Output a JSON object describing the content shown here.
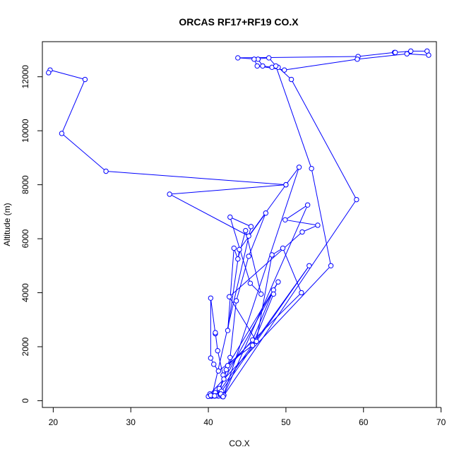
{
  "chart_data": {
    "type": "line",
    "title": "ORCAS RF17+RF19 CO.X",
    "xlabel": "CO.X",
    "ylabel": "Altitude (m)",
    "xlim": [
      18.6,
      69.4
    ],
    "ylim": [
      -250,
      13300
    ],
    "x_ticks": [
      20,
      30,
      40,
      50,
      60,
      70
    ],
    "x_tick_labels": [
      "20",
      "30",
      "40",
      "50",
      "60",
      "70"
    ],
    "y_ticks": [
      0,
      2000,
      4000,
      6000,
      8000,
      10000,
      12000
    ],
    "y_tick_labels": [
      "0",
      "2000",
      "4000",
      "6000",
      "8000",
      "10000",
      "12000"
    ],
    "grid": false,
    "line_color": "#0000ff",
    "marker": "open-circle",
    "series": [
      {
        "points": [
          [
            40.0,
            160
          ],
          [
            40.4,
            165
          ],
          [
            40.8,
            170
          ],
          [
            41.3,
            170
          ],
          [
            41.8,
            160
          ],
          [
            41.5,
            300
          ],
          [
            41.9,
            950
          ],
          [
            42.3,
            1150
          ],
          [
            45.7,
            2250
          ],
          [
            48.4,
            4100
          ],
          [
            48.4,
            3950
          ],
          [
            45.7,
            2050
          ],
          [
            41.3,
            1100
          ],
          [
            40.7,
            1350
          ],
          [
            40.3,
            1580
          ],
          [
            40.3,
            3800
          ],
          [
            40.9,
            2480
          ],
          [
            40.9,
            2520
          ],
          [
            41.2,
            1850
          ],
          [
            42.0,
            800
          ],
          [
            42.8,
            1600
          ],
          [
            43.6,
            3700
          ],
          [
            45.2,
            5350
          ],
          [
            47.4,
            6950
          ],
          [
            44.0,
            5600
          ],
          [
            42.5,
            2600
          ],
          [
            43.3,
            5650
          ],
          [
            43.8,
            5250
          ],
          [
            44.8,
            6300
          ],
          [
            46.8,
            3950
          ],
          [
            45.4,
            4350
          ],
          [
            42.8,
            6800
          ],
          [
            45.5,
            6450
          ],
          [
            40.5,
            200
          ],
          [
            41.0,
            200
          ],
          [
            41.7,
            180
          ],
          [
            42.0,
            200
          ],
          [
            52.8,
            7250
          ],
          [
            49.9,
            6700
          ],
          [
            54.1,
            6500
          ],
          [
            52.1,
            6250
          ],
          [
            42.7,
            3850
          ],
          [
            46.2,
            2200
          ],
          [
            48.2,
            5400
          ],
          [
            49.6,
            5650
          ],
          [
            52.0,
            4000
          ],
          [
            42.5,
            1300
          ],
          [
            49.0,
            4400
          ],
          [
            41.4,
            450
          ],
          [
            40.9,
            300
          ],
          [
            41.5,
            250
          ],
          [
            41.7,
            350
          ],
          [
            53.0,
            5000
          ],
          [
            41.0,
            180
          ],
          [
            41.9,
            150
          ],
          [
            59.1,
            7450
          ],
          [
            50.7,
            11900
          ],
          [
            49.0,
            12350
          ],
          [
            48.2,
            12350
          ],
          [
            47.0,
            12400
          ],
          [
            46.4,
            12650
          ],
          [
            43.8,
            12700
          ],
          [
            59.3,
            12750
          ],
          [
            64.0,
            12900
          ],
          [
            64.1,
            12900
          ],
          [
            66.1,
            12950
          ],
          [
            68.2,
            12950
          ],
          [
            68.4,
            12800
          ],
          [
            65.6,
            12850
          ],
          [
            59.2,
            12650
          ],
          [
            49.8,
            12250
          ],
          [
            46.3,
            12400
          ],
          [
            45.9,
            12650
          ],
          [
            47.8,
            12700
          ],
          [
            48.7,
            12400
          ],
          [
            53.3,
            8600
          ],
          [
            55.8,
            5000
          ],
          [
            40.2,
            250
          ],
          [
            40.3,
            200
          ],
          [
            41.6,
            250
          ],
          [
            40.8,
            180
          ],
          [
            41.9,
            150
          ],
          [
            51.7,
            8650
          ],
          [
            50.0,
            8000
          ],
          [
            35.0,
            7650
          ],
          [
            45.2,
            6100
          ],
          [
            50.0,
            8000
          ],
          [
            26.8,
            8500
          ],
          [
            21.1,
            9900
          ],
          [
            24.1,
            11900
          ],
          [
            19.6,
            12250
          ],
          [
            19.4,
            12150
          ]
        ]
      }
    ]
  }
}
